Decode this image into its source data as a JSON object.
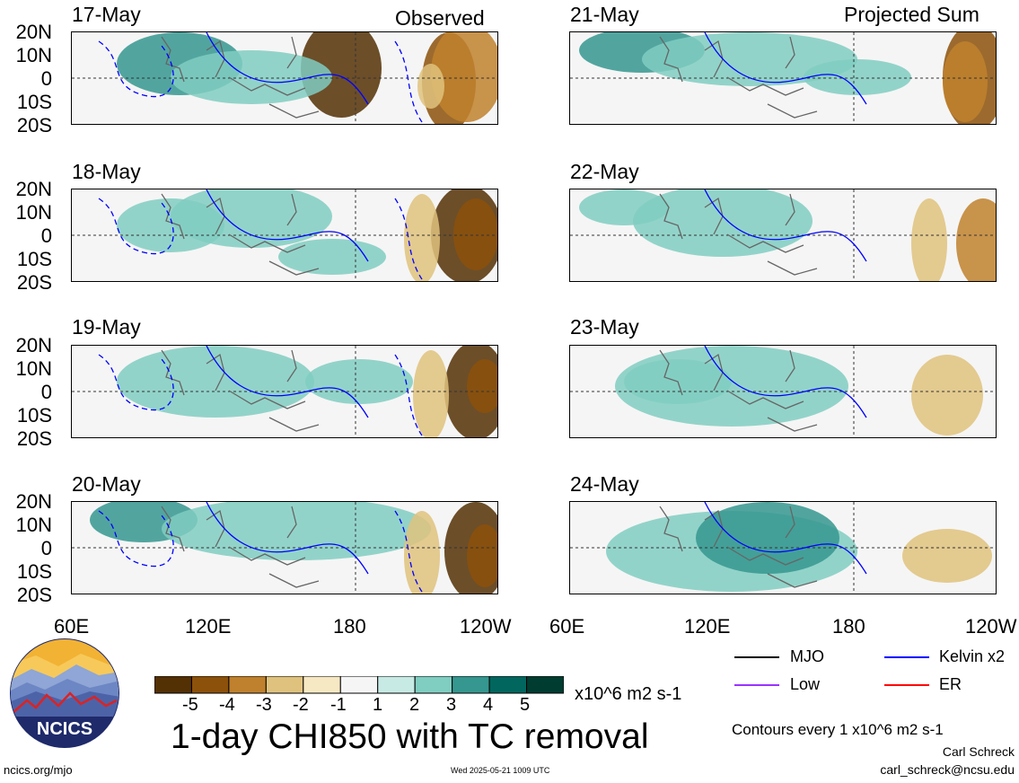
{
  "panels": {
    "left_tag": "Observed",
    "right_tag": "Projected Sum",
    "left_dates": [
      "17-May",
      "18-May",
      "19-May",
      "20-May"
    ],
    "right_dates": [
      "21-May",
      "22-May",
      "23-May",
      "24-May"
    ]
  },
  "axes": {
    "lat_labels": [
      "20N",
      "10N",
      "0",
      "10S",
      "20S"
    ],
    "lon_labels_left": [
      "60E",
      "120E",
      "180",
      "120W"
    ],
    "lon_labels_right": [
      "60E",
      "120E",
      "180",
      "120W"
    ]
  },
  "colorbar": {
    "ticks": [
      "-5",
      "-4",
      "-3",
      "-2",
      "-1",
      "1",
      "2",
      "3",
      "4",
      "5"
    ],
    "units": "x10^6 m2 s-1",
    "colors": [
      "#543005",
      "#8c510a",
      "#bf812d",
      "#dfc27d",
      "#f6e8c3",
      "#f5f5f5",
      "#c7eae5",
      "#80cdc1",
      "#35978f",
      "#01665e",
      "#003c30"
    ]
  },
  "title": "1-day CHI850 with TC removal",
  "legend": {
    "items": [
      {
        "label": "MJO",
        "color": "#000000"
      },
      {
        "label": "Kelvin x2",
        "color": "#0000ff"
      },
      {
        "label": "Low",
        "color": "#9933ff"
      },
      {
        "label": "ER",
        "color": "#ff0000"
      }
    ],
    "contours_note": "Contours every 1 x10^6 m2 s-1"
  },
  "footer": {
    "url": "ncics.org/mjo",
    "timestamp": "Wed 2025-05-21 1009 UTC",
    "author": "Carl Schreck",
    "email": "carl_schreck@ncsu.edu"
  },
  "logo": {
    "text": "NCICS"
  }
}
